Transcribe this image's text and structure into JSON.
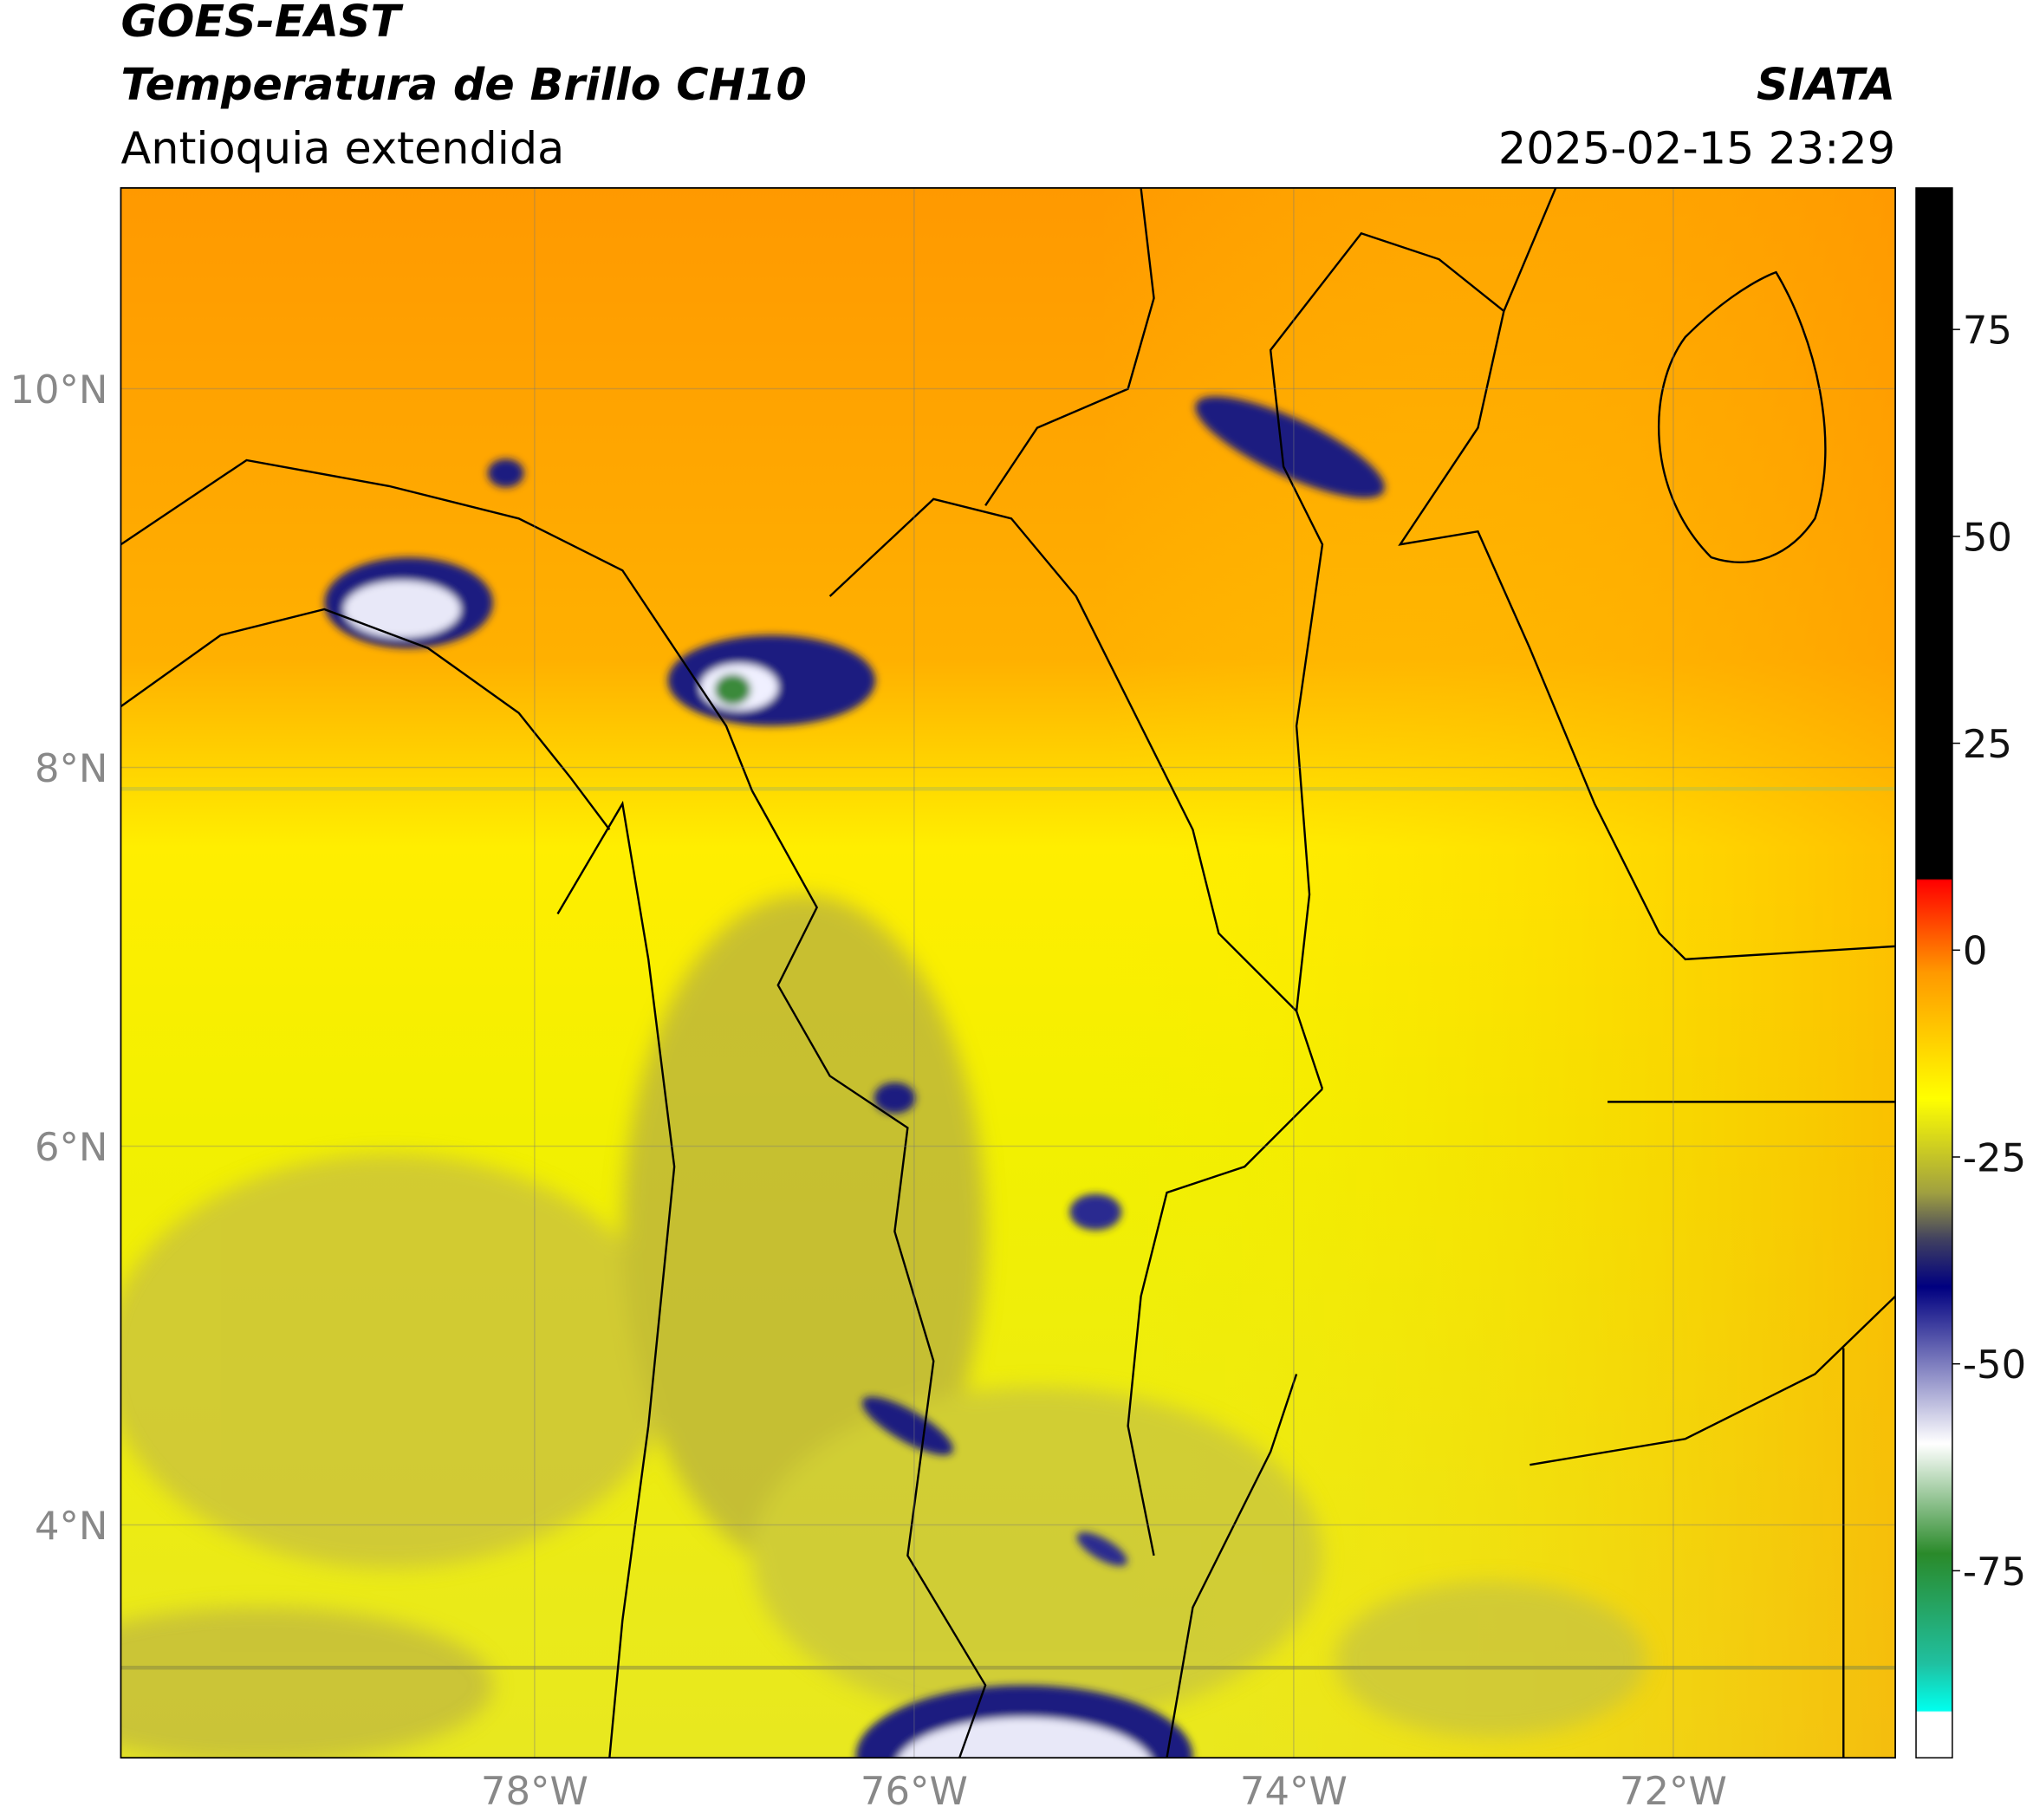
{
  "header": {
    "title": "GOES-EAST",
    "subtitle": "Temperatura de Brillo CH10",
    "region": "Antioquia extendida",
    "agency": "SIATA",
    "datetime": "2025-02-15 23:29"
  },
  "map": {
    "xlim": [
      -80.18,
      -70.83
    ],
    "ylim": [
      2.77,
      11.06
    ],
    "xticks": [
      {
        "value": -78,
        "label": "78°W"
      },
      {
        "value": -76,
        "label": "76°W"
      },
      {
        "value": -74,
        "label": "74°W"
      },
      {
        "value": -72,
        "label": "72°W"
      }
    ],
    "yticks": [
      {
        "value": 10,
        "label": "10°N"
      },
      {
        "value": 8,
        "label": "8°N"
      },
      {
        "value": 6,
        "label": "6°N"
      },
      {
        "value": 4,
        "label": "4°N"
      }
    ],
    "grid": true
  },
  "colorbar": {
    "lim": [
      -97.6,
      92.1
    ],
    "ticks": [
      75,
      50,
      25,
      0,
      -25,
      -50,
      -75
    ]
  }
}
